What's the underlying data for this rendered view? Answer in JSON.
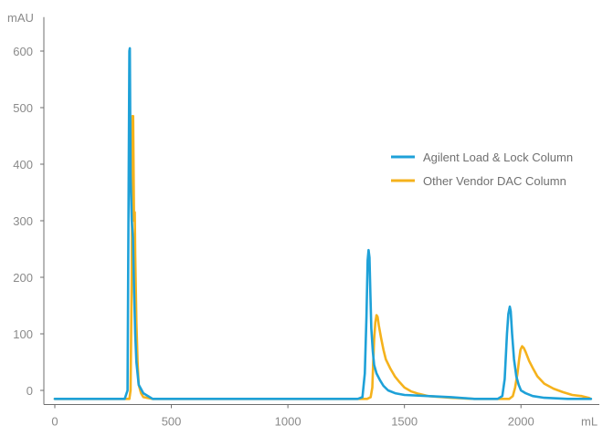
{
  "chart_data": {
    "type": "line",
    "title": "",
    "xlabel": "mL",
    "ylabel": "mAU",
    "xlim": [
      -10,
      2330
    ],
    "ylim": [
      -25,
      660
    ],
    "x_ticks": [
      0,
      500,
      1000,
      1500,
      2000
    ],
    "y_ticks": [
      0,
      100,
      200,
      300,
      400,
      500,
      600
    ],
    "grid": false,
    "legend_position": "right",
    "series": [
      {
        "name": "Agilent Load & Lock Column",
        "color": "#1ea1d8",
        "x": [
          0,
          300,
          312,
          316,
          320,
          322,
          325,
          330,
          335,
          340,
          345,
          350,
          360,
          380,
          420,
          600,
          900,
          1200,
          1300,
          1320,
          1330,
          1337,
          1342,
          1346,
          1350,
          1354,
          1358,
          1364,
          1370,
          1380,
          1395,
          1410,
          1430,
          1460,
          1500,
          1600,
          1700,
          1800,
          1900,
          1920,
          1930,
          1940,
          1946,
          1952,
          1956,
          1962,
          1970,
          1980,
          1990,
          2000,
          2020,
          2050,
          2100,
          2200,
          2300
        ],
        "y": [
          -15,
          -15,
          0,
          300,
          600,
          605,
          380,
          300,
          270,
          180,
          100,
          50,
          10,
          -5,
          -15,
          -15,
          -15,
          -15,
          -15,
          -12,
          30,
          130,
          230,
          248,
          235,
          170,
          110,
          70,
          45,
          30,
          18,
          8,
          0,
          -5,
          -8,
          -10,
          -12,
          -15,
          -15,
          -10,
          20,
          100,
          135,
          148,
          140,
          100,
          55,
          25,
          10,
          0,
          -5,
          -10,
          -13,
          -15,
          -15
        ]
      },
      {
        "name": "Other Vendor DAC Column",
        "color": "#f5b21c",
        "x": [
          0,
          300,
          320,
          325,
          330,
          333,
          336,
          340,
          343,
          345,
          350,
          355,
          360,
          370,
          380,
          420,
          600,
          900,
          1200,
          1340,
          1355,
          1362,
          1366,
          1370,
          1375,
          1380,
          1385,
          1390,
          1400,
          1410,
          1420,
          1440,
          1460,
          1480,
          1500,
          1530,
          1560,
          1600,
          1700,
          1800,
          1950,
          1965,
          1975,
          1985,
          1992,
          1998,
          2005,
          2012,
          2020,
          2035,
          2050,
          2070,
          2100,
          2140,
          2180,
          2220,
          2260,
          2290,
          2300
        ],
        "y": [
          -15,
          -15,
          -15,
          0,
          200,
          485,
          485,
          300,
          315,
          240,
          120,
          50,
          10,
          -5,
          -12,
          -15,
          -15,
          -15,
          -15,
          -15,
          -12,
          5,
          50,
          90,
          120,
          133,
          130,
          115,
          92,
          72,
          55,
          38,
          24,
          14,
          5,
          -2,
          -6,
          -10,
          -13,
          -15,
          -15,
          -10,
          5,
          30,
          55,
          72,
          78,
          75,
          68,
          52,
          40,
          25,
          12,
          3,
          -3,
          -8,
          -10,
          -13,
          -15
        ]
      }
    ]
  }
}
